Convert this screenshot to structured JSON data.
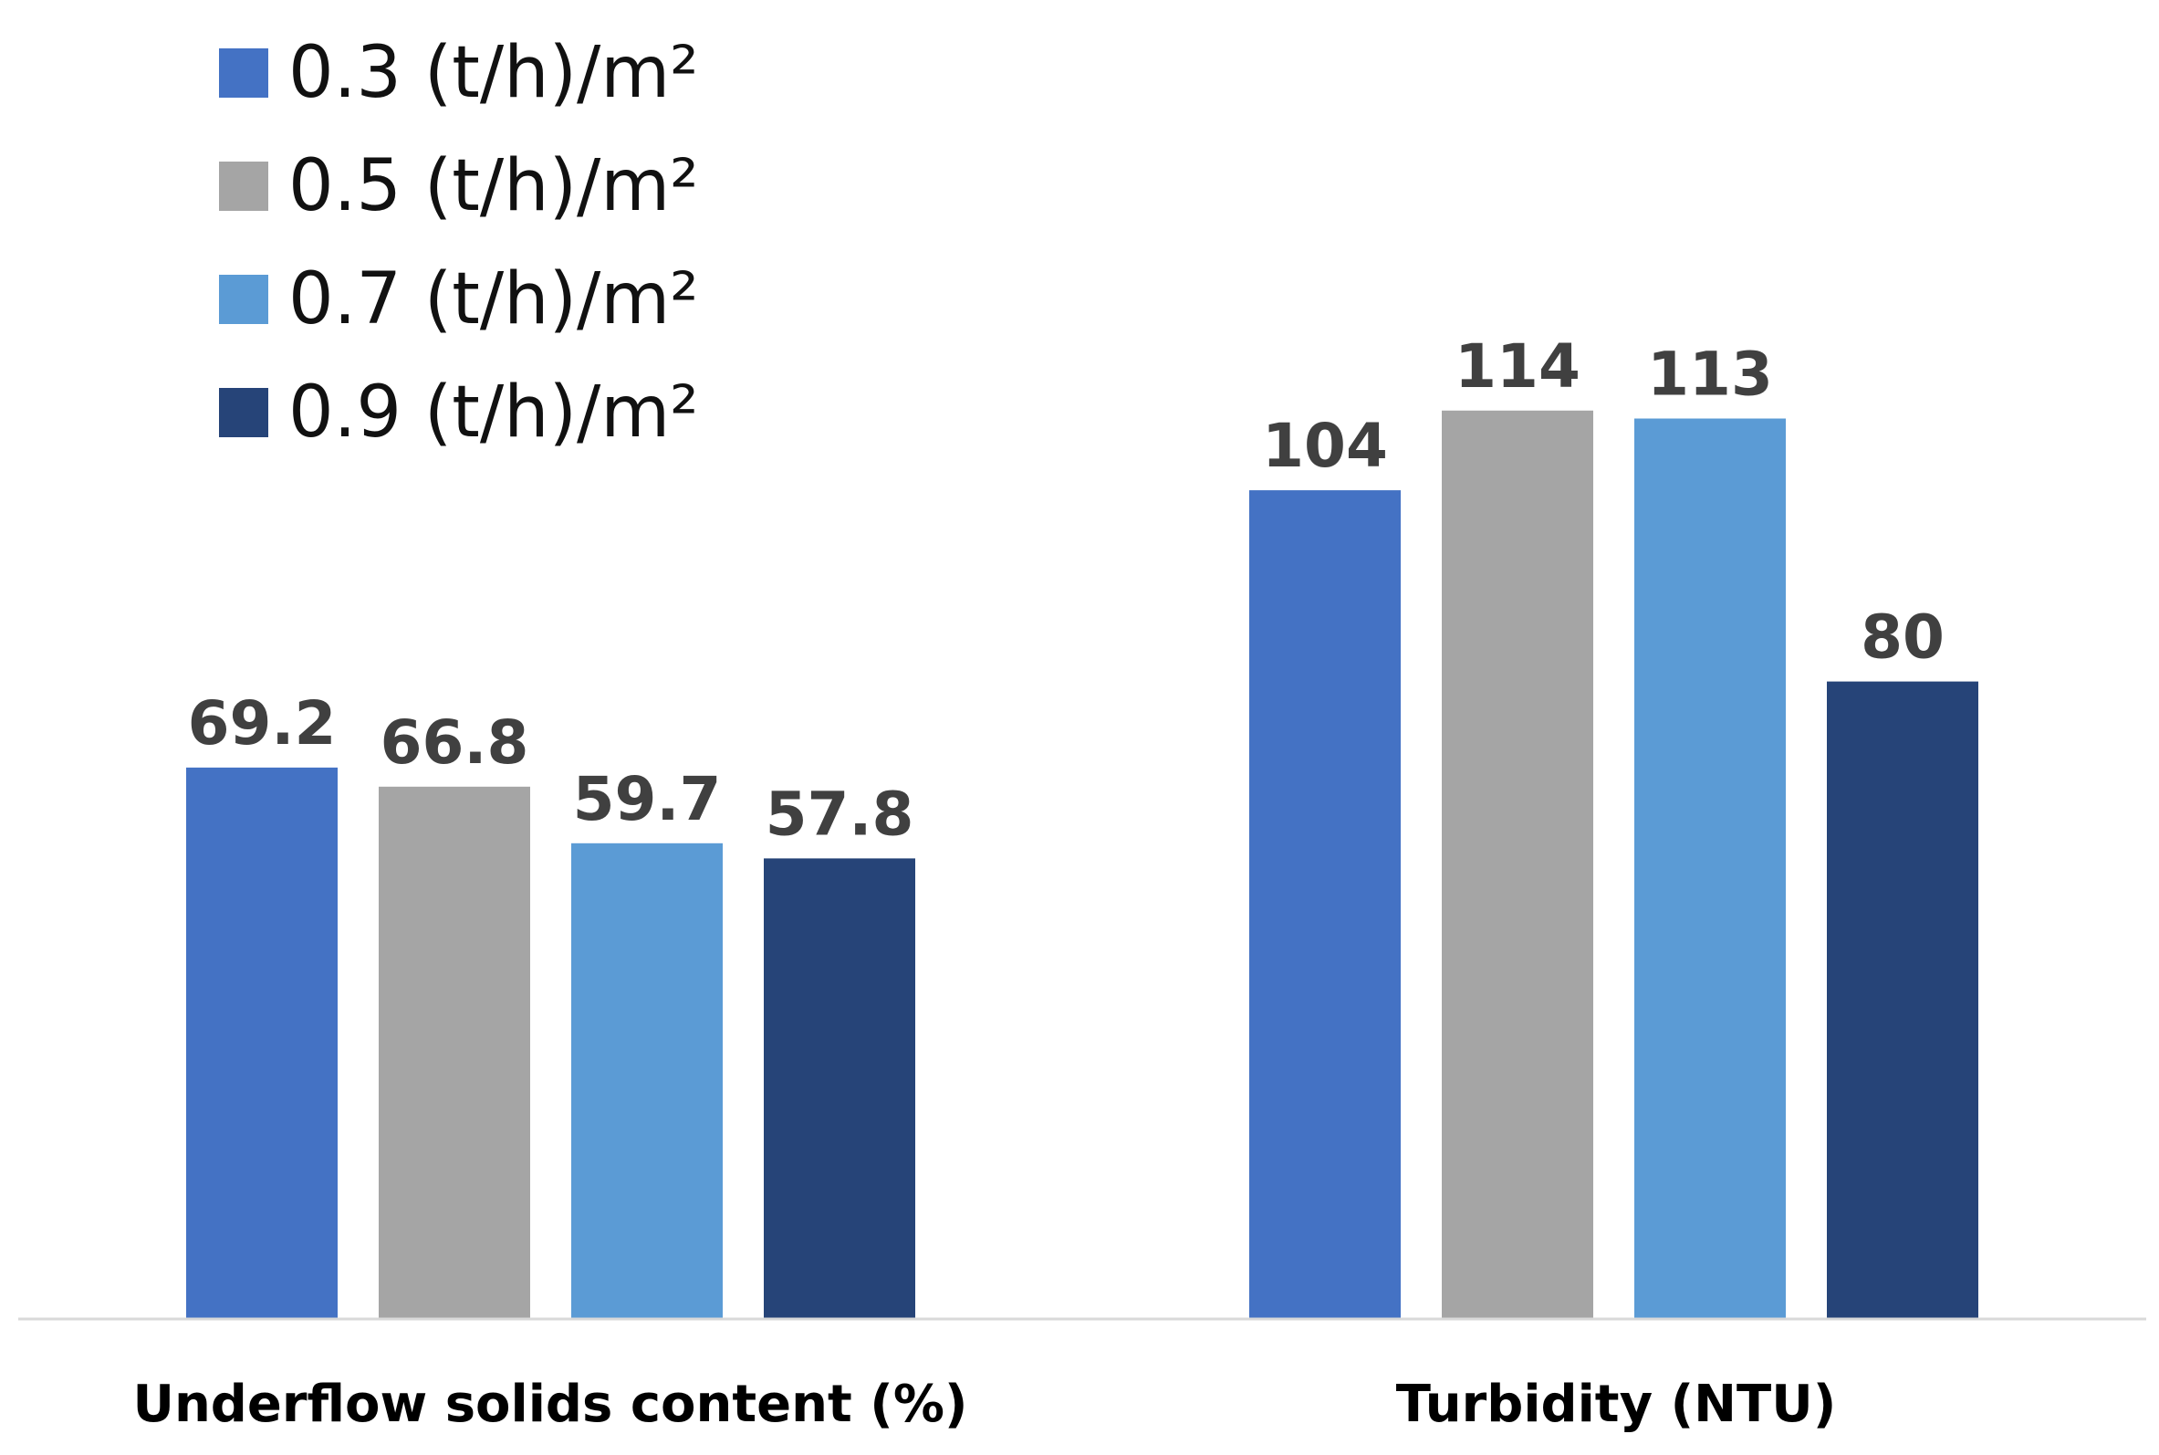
{
  "chart_data": {
    "type": "bar",
    "title": "",
    "xlabel": "",
    "ylabel": "",
    "grid": false,
    "legend_position": "top-left",
    "categories": [
      "Underflow solids content (%)",
      "Turbidity (NTU)"
    ],
    "series": [
      {
        "name": "0.3 (t/h)/m²",
        "color": "#4472C4",
        "values": [
          69.2,
          104
        ],
        "labels": [
          "69.2",
          "104"
        ]
      },
      {
        "name": "0.5 (t/h)/m²",
        "color": "#A5A5A5",
        "values": [
          66.8,
          114
        ],
        "labels": [
          "66.8",
          "114"
        ]
      },
      {
        "name": "0.7 (t/h)/m²",
        "color": "#5B9BD5",
        "values": [
          59.7,
          113
        ],
        "labels": [
          "59.7",
          "113"
        ]
      },
      {
        "name": "0.9 (t/h)/m²",
        "color": "#264478",
        "values": [
          57.8,
          80
        ],
        "labels": [
          "57.8",
          "80"
        ]
      }
    ],
    "ylim": [
      0,
      165
    ]
  },
  "colors": {
    "axis": "#D9D9D9",
    "value_label": "#404040",
    "category_label": "#000000"
  }
}
